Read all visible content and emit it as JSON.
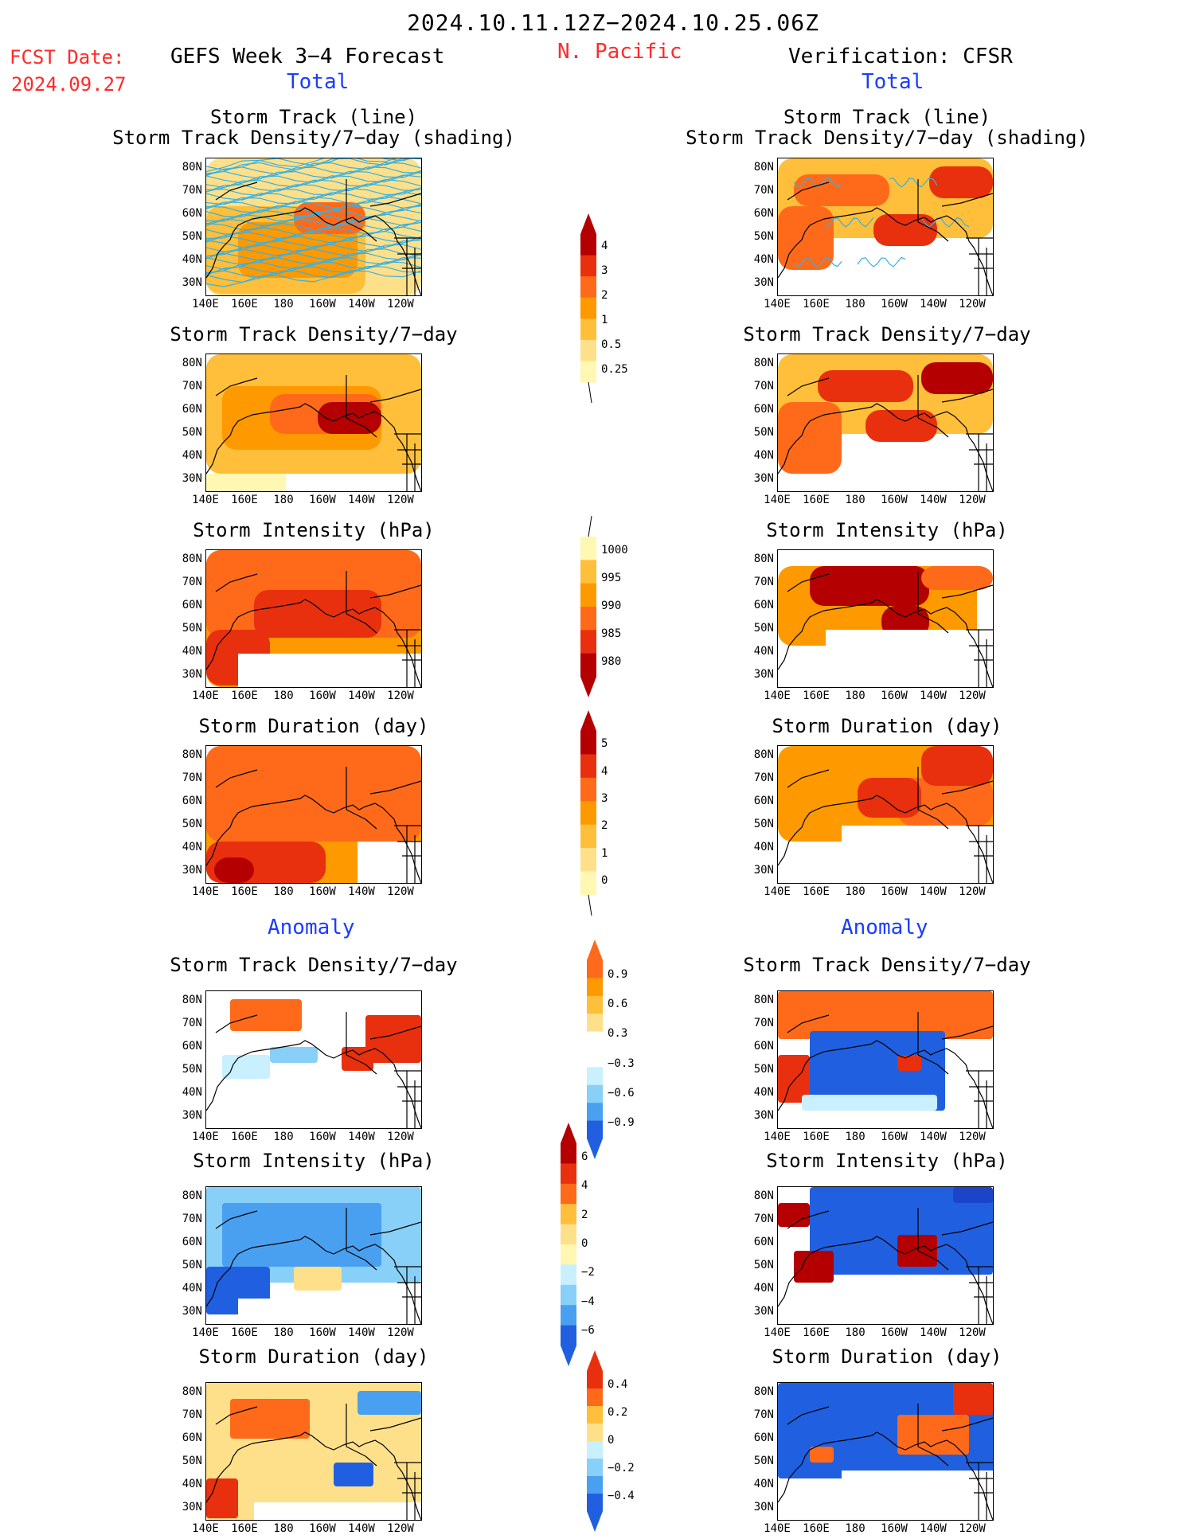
{
  "header": {
    "period": "2024.10.11.12Z−2024.10.25.06Z",
    "fcst_label": "FCST Date:",
    "fcst_date": "2024.09.27",
    "left_title": "GEFS Week 3−4 Forecast",
    "region": "N. Pacific",
    "right_title": "Verification: CFSR"
  },
  "sections": {
    "total": "Total",
    "anomaly": "Anomaly"
  },
  "panel_titles": {
    "track_line": "Storm Track (line)",
    "track_shading": "Storm Track Density/7−day (shading)",
    "density": "Storm Track Density/7−day",
    "intensity": "Storm Intensity (hPa)",
    "duration": "Storm Duration (day)"
  },
  "axes": {
    "lat_ticks": [
      "80N",
      "70N",
      "60N",
      "50N",
      "40N",
      "30N"
    ],
    "lon_ticks": [
      "140E",
      "160E",
      "180",
      "160W",
      "140W",
      "120W"
    ]
  },
  "colorbars": {
    "density_total": [
      "4",
      "3",
      "2",
      "1",
      "0.5",
      "0.25"
    ],
    "intensity_total": [
      "1000",
      "995",
      "990",
      "985",
      "980"
    ],
    "duration_total": [
      "5",
      "4",
      "3",
      "2",
      "1",
      "0"
    ],
    "density_anom": [
      "0.9",
      "0.6",
      "0.3",
      "−0.3",
      "−0.6",
      "−0.9"
    ],
    "intensity_anom": [
      "6",
      "4",
      "2",
      "0",
      "−2",
      "−4",
      "−6"
    ],
    "duration_anom": [
      "0.4",
      "0.2",
      "0",
      "−0.2",
      "−0.4"
    ]
  },
  "colors": {
    "warm_scale": [
      "#fff7b2",
      "#ffe08a",
      "#ffbf3a",
      "#ff9900",
      "#ff6a1a",
      "#e8300e",
      "#b40000"
    ],
    "cool_scale": [
      "#c8f0ff",
      "#88d0f8",
      "#4aa0f0",
      "#2060e0",
      "#1c44c8"
    ],
    "title_red": "#ff2a2a",
    "title_blue": "#1a3cff",
    "track_line": "#3ab0e0"
  }
}
